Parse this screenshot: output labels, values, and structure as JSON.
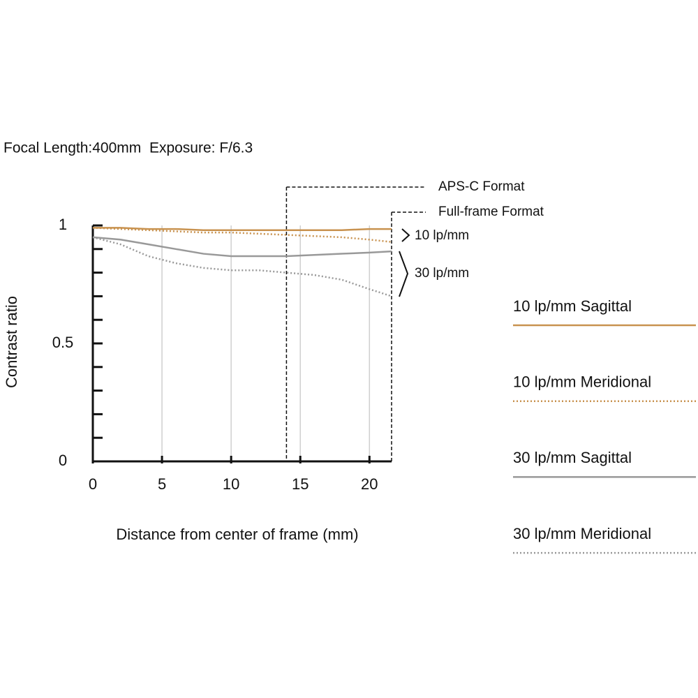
{
  "chart_data": {
    "type": "line",
    "title": "Focal Length:400mm  Exposure: F/6.3",
    "x_label": "Distance from center of frame (mm)",
    "y_label": "Contrast ratio",
    "x": [
      0,
      2,
      4,
      6,
      8,
      10,
      12,
      14,
      16,
      18,
      20,
      21.6
    ],
    "series": [
      {
        "name": "10 lp/mm Sagittal",
        "color": "#c8924f",
        "style": "solid",
        "values": [
          0.99,
          0.99,
          0.985,
          0.985,
          0.98,
          0.98,
          0.98,
          0.98,
          0.98,
          0.98,
          0.985,
          0.985
        ]
      },
      {
        "name": "10 lp/mm Meridional",
        "color": "#c8924f",
        "style": "dotted",
        "values": [
          0.99,
          0.985,
          0.98,
          0.975,
          0.97,
          0.97,
          0.965,
          0.96,
          0.955,
          0.95,
          0.94,
          0.93
        ]
      },
      {
        "name": "30 lp/mm Sagittal",
        "color": "#999999",
        "style": "solid",
        "values": [
          0.95,
          0.94,
          0.92,
          0.9,
          0.88,
          0.87,
          0.87,
          0.87,
          0.875,
          0.88,
          0.885,
          0.89
        ]
      },
      {
        "name": "30 lp/mm Meridional",
        "color": "#999999",
        "style": "dotted",
        "values": [
          0.95,
          0.92,
          0.87,
          0.84,
          0.82,
          0.81,
          0.81,
          0.8,
          0.79,
          0.77,
          0.73,
          0.7
        ]
      }
    ],
    "xlim": [
      0,
      21.6
    ],
    "xticks": [
      0,
      5,
      10,
      15,
      20
    ],
    "ylim": [
      0,
      1
    ],
    "yticks": [
      0,
      0.5,
      1
    ],
    "yminor_ticks": [
      0.1,
      0.2,
      0.3,
      0.4,
      0.6,
      0.7,
      0.8,
      0.9
    ],
    "grid": true,
    "formats": [
      {
        "label": "APS-C Format",
        "x": 14
      },
      {
        "label": "Full-frame Format",
        "x": 21.6
      }
    ],
    "annotations": [
      "10 lp/mm",
      "30 lp/mm"
    ]
  }
}
